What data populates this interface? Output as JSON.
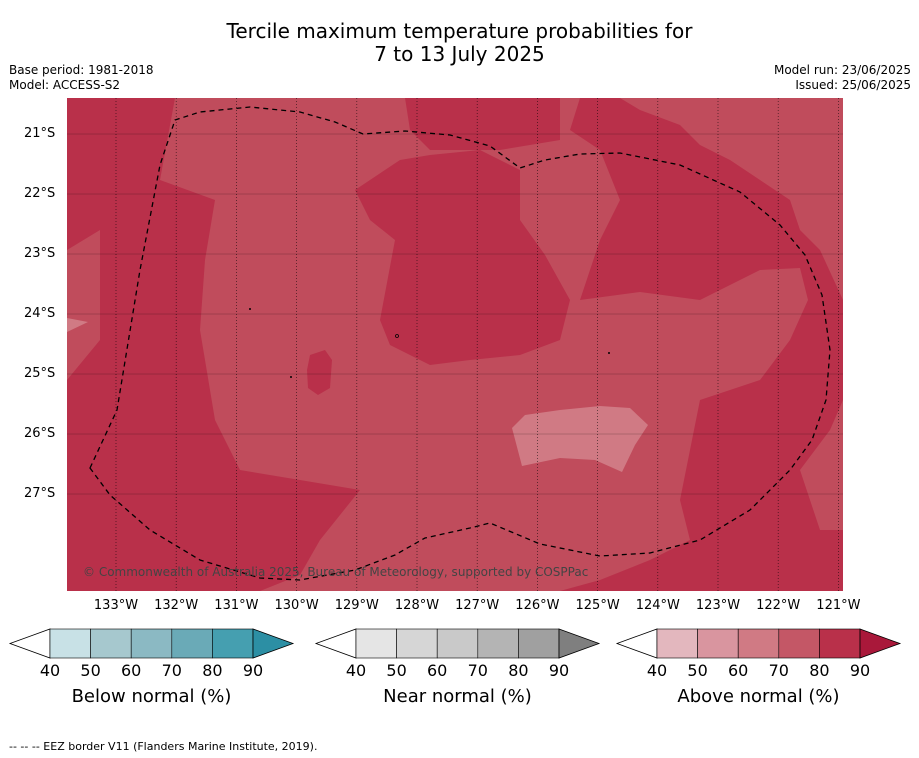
{
  "title_line1": "Tercile maximum temperature probabilities for",
  "title_line2": "7 to 13 July 2025",
  "base_period": "Base period: 1981-2018",
  "model": "Model: ACCESS-S2",
  "model_run": "Model run: 23/06/2025",
  "issued": "Issued: 25/06/2025",
  "lat_labels": [
    "21°S",
    "22°S",
    "23°S",
    "24°S",
    "25°S",
    "26°S",
    "27°S"
  ],
  "lon_labels": [
    "133°W",
    "132°W",
    "131°W",
    "130°W",
    "129°W",
    "128°W",
    "127°W",
    "126°W",
    "125°W",
    "124°W",
    "123°W",
    "122°W",
    "121°W"
  ],
  "copyright": "© Commonwealth of Australia 2025, Bureau of Meteorology, supported by COSPPac",
  "colorbars": [
    {
      "title": "Below normal (%)",
      "ticks": [
        "40",
        "50",
        "60",
        "70",
        "80",
        "90"
      ],
      "colors": [
        "#c8e1e6",
        "#a6c8ce",
        "#8bb9c3",
        "#6aaab7",
        "#459fb0",
        "#2c8fa4"
      ]
    },
    {
      "title": "Near normal (%)",
      "ticks": [
        "40",
        "50",
        "60",
        "70",
        "80",
        "90"
      ],
      "colors": [
        "#e5e5e5",
        "#d6d6d6",
        "#c9c9c9",
        "#b4b4b4",
        "#a0a0a0",
        "#7f7f7f"
      ]
    },
    {
      "title": "Above normal (%)",
      "ticks": [
        "40",
        "50",
        "60",
        "70",
        "80",
        "90"
      ],
      "colors": [
        "#e3b7be",
        "#d9959f",
        "#d07a84",
        "#c45766",
        "#b9304a",
        "#a9183a"
      ]
    }
  ],
  "map_colors": {
    "p60_70": "#d07a84",
    "p70_80": "#c04c5c",
    "p80_90": "#b9304a"
  },
  "footer": "--  --  -- EEZ border V11 (Flanders Marine Institute, 2019)."
}
